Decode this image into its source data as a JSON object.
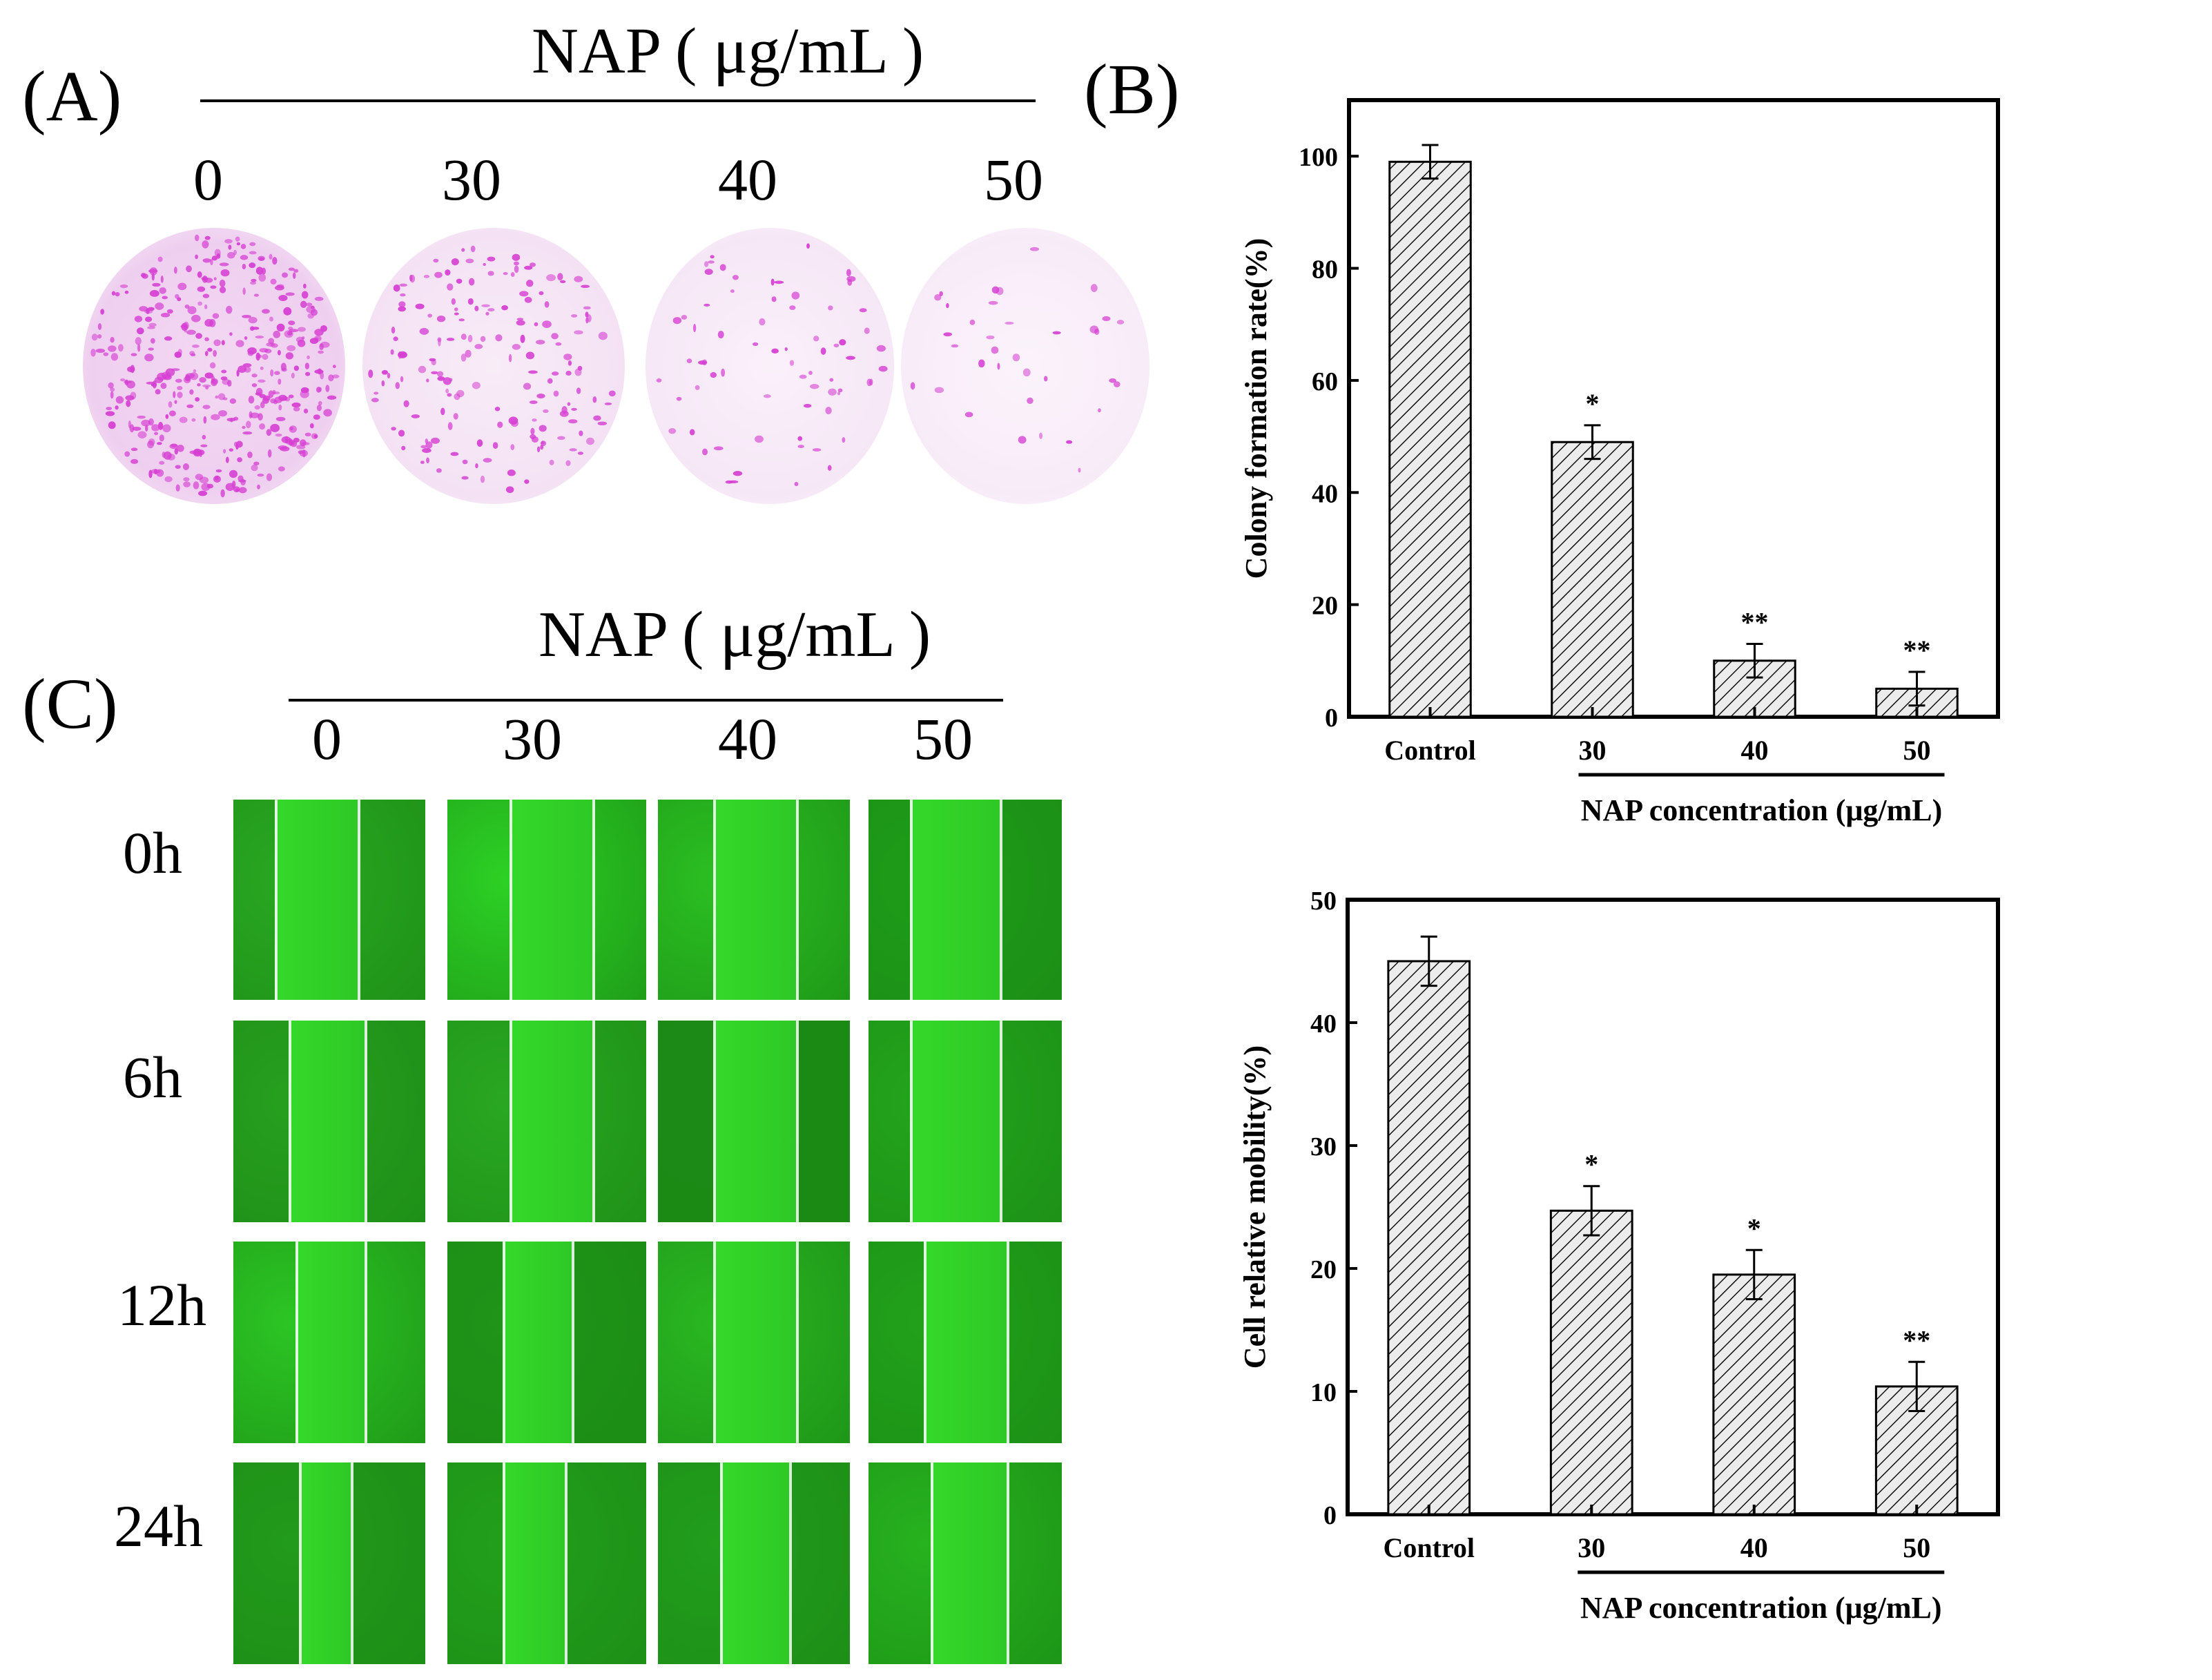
{
  "panel_a": {
    "letter": "(A)",
    "title": "NAP ( μg/mL )",
    "concentrations": [
      "0",
      "30",
      "40",
      "50"
    ]
  },
  "panel_b": {
    "letter": "(B)"
  },
  "panel_c": {
    "letter": "(C)",
    "title": "NAP ( μg/mL )",
    "concentrations": [
      "0",
      "30",
      "40",
      "50"
    ],
    "times": [
      "0h",
      "6h",
      "12h",
      "24h"
    ]
  },
  "colors": {
    "stain": "#d63fd3",
    "scratch_green": "#22b419",
    "bar_fill": "#ececec",
    "axis": "#000000"
  },
  "chart_data": [
    {
      "type": "bar",
      "title": "",
      "categories": [
        "Control",
        "30",
        "40",
        "50"
      ],
      "values": [
        99,
        49,
        10,
        5
      ],
      "errors": [
        3,
        3,
        3,
        3
      ],
      "significance": [
        "",
        "*",
        "**",
        "**"
      ],
      "ylabel": "Colony formation rate(%)",
      "xlabel": "NAP concentration (μg/mL)",
      "ylim": [
        0,
        110
      ],
      "yticks": [
        0,
        20,
        40,
        60,
        80,
        100
      ],
      "grid": false
    },
    {
      "type": "bar",
      "title": "",
      "categories": [
        "Control",
        "30",
        "40",
        "50"
      ],
      "values": [
        45,
        24.7,
        19.5,
        10.4
      ],
      "errors": [
        2,
        2,
        2,
        2
      ],
      "significance": [
        "",
        "*",
        "*",
        "**"
      ],
      "ylabel": "Cell relative mobility(%)",
      "xlabel": "NAP concentration (μg/mL)",
      "ylim": [
        0,
        50
      ],
      "yticks": [
        0,
        10,
        20,
        30,
        40,
        50
      ],
      "grid": false
    }
  ]
}
